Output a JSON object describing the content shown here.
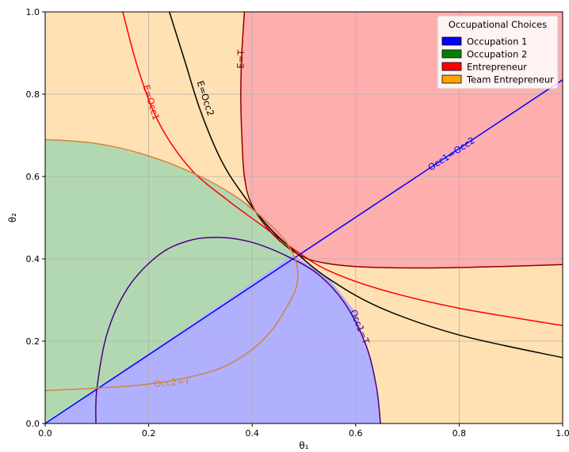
{
  "chart_data": {
    "type": "area",
    "title": "",
    "xlabel": "θ₁",
    "ylabel": "θ₂",
    "xlim": [
      0,
      1
    ],
    "ylim": [
      0,
      1
    ],
    "grid": true,
    "x_ticks": [
      "0.0",
      "0.2",
      "0.4",
      "0.6",
      "0.8",
      "1.0"
    ],
    "y_ticks": [
      "0.0",
      "0.2",
      "0.4",
      "0.6",
      "0.8",
      "1.0"
    ],
    "legend": {
      "title": "Occupational Choices",
      "placement": "top-right",
      "entries": [
        {
          "label": "Occupation 1",
          "color": "#0000ff"
        },
        {
          "label": "Occupation 2",
          "color": "#008000"
        },
        {
          "label": "Entrepreneur",
          "color": "#ff0000"
        },
        {
          "label": "Team Entrepreneur",
          "color": "#ffa500"
        }
      ]
    },
    "regions": [
      {
        "name": "Occupation 1",
        "color": "#b0b0ff",
        "polygon": [
          [
            0,
            0
          ],
          [
            0.48,
            0.41
          ],
          [
            0.55,
            0.35
          ],
          [
            0.6,
            0.27
          ],
          [
            0.63,
            0.15
          ],
          [
            0.645,
            0.05
          ],
          [
            0.648,
            0
          ]
        ]
      },
      {
        "name": "Occupation 2",
        "color": "#b2d8b2",
        "polygon": [
          [
            0,
            0.69
          ],
          [
            0.1,
            0.68
          ],
          [
            0.2,
            0.65
          ],
          [
            0.3,
            0.6
          ],
          [
            0.37,
            0.55
          ],
          [
            0.42,
            0.5
          ],
          [
            0.46,
            0.45
          ],
          [
            0.48,
            0.41
          ],
          [
            0,
            0
          ]
        ]
      },
      {
        "name": "Entrepreneur",
        "color": "#ffaeae",
        "polygon": [
          [
            0.385,
            1.0
          ],
          [
            0.38,
            0.9
          ],
          [
            0.378,
            0.8
          ],
          [
            0.38,
            0.7
          ],
          [
            0.385,
            0.6
          ],
          [
            0.4,
            0.53
          ],
          [
            0.44,
            0.46
          ],
          [
            0.49,
            0.41
          ],
          [
            0.54,
            0.39
          ],
          [
            0.62,
            0.38
          ],
          [
            0.75,
            0.378
          ],
          [
            0.9,
            0.382
          ],
          [
            1.0,
            0.386
          ],
          [
            1.0,
            1.0
          ]
        ]
      },
      {
        "name": "Team Entrepreneur",
        "color": "#ffe1b3",
        "fill": "background"
      }
    ],
    "curves": [
      {
        "label": "E=Occ1",
        "color": "#ff0000",
        "points": [
          [
            0.15,
            1.0
          ],
          [
            0.18,
            0.86
          ],
          [
            0.22,
            0.73
          ],
          [
            0.28,
            0.62
          ],
          [
            0.35,
            0.545
          ],
          [
            0.42,
            0.48
          ],
          [
            0.49,
            0.415
          ],
          [
            0.55,
            0.37
          ],
          [
            0.65,
            0.325
          ],
          [
            0.8,
            0.28
          ],
          [
            1.0,
            0.238
          ]
        ]
      },
      {
        "label": "E=Occ2",
        "color": "#000000",
        "points": [
          [
            0.24,
            1.0
          ],
          [
            0.27,
            0.88
          ],
          [
            0.3,
            0.76
          ],
          [
            0.34,
            0.64
          ],
          [
            0.38,
            0.56
          ],
          [
            0.43,
            0.48
          ],
          [
            0.48,
            0.42
          ],
          [
            0.55,
            0.35
          ],
          [
            0.65,
            0.28
          ],
          [
            0.8,
            0.215
          ],
          [
            1.0,
            0.16
          ]
        ]
      },
      {
        "label": "E=T",
        "color": "#8b0000",
        "points": [
          [
            0.385,
            1.0
          ],
          [
            0.38,
            0.9
          ],
          [
            0.378,
            0.8
          ],
          [
            0.38,
            0.7
          ],
          [
            0.385,
            0.6
          ],
          [
            0.4,
            0.53
          ],
          [
            0.44,
            0.46
          ],
          [
            0.49,
            0.41
          ],
          [
            0.54,
            0.39
          ],
          [
            0.62,
            0.38
          ],
          [
            0.75,
            0.378
          ],
          [
            0.9,
            0.382
          ],
          [
            1.0,
            0.386
          ]
        ]
      },
      {
        "label": "Occ1=Occ2",
        "color": "#0000ff",
        "points": [
          [
            0,
            0
          ],
          [
            1.0,
            0.835
          ]
        ]
      },
      {
        "label": "Occ1=T",
        "color": "#4b0082",
        "points": [
          [
            0.098,
            0
          ],
          [
            0.1,
            0.085
          ],
          [
            0.12,
            0.22
          ],
          [
            0.16,
            0.33
          ],
          [
            0.22,
            0.41
          ],
          [
            0.28,
            0.445
          ],
          [
            0.34,
            0.452
          ],
          [
            0.4,
            0.44
          ],
          [
            0.47,
            0.405
          ],
          [
            0.53,
            0.36
          ],
          [
            0.58,
            0.29
          ],
          [
            0.62,
            0.19
          ],
          [
            0.64,
            0.09
          ],
          [
            0.648,
            0
          ]
        ]
      },
      {
        "label": "Occc2=T",
        "color": "#cd853f",
        "points": [
          [
            0,
            0.69
          ],
          [
            0.1,
            0.68
          ],
          [
            0.2,
            0.65
          ],
          [
            0.3,
            0.6
          ],
          [
            0.37,
            0.55
          ],
          [
            0.42,
            0.5
          ],
          [
            0.46,
            0.45
          ],
          [
            0.48,
            0.41
          ],
          [
            0.488,
            0.37
          ],
          [
            0.485,
            0.33
          ],
          [
            0.47,
            0.29
          ],
          [
            0.44,
            0.23
          ],
          [
            0.4,
            0.18
          ],
          [
            0.34,
            0.135
          ],
          [
            0.26,
            0.108
          ],
          [
            0.18,
            0.093
          ],
          [
            0.1,
            0.086
          ],
          [
            0,
            0.08
          ]
        ]
      },
      {
        "label": "",
        "color": "#cd853f",
        "points": [
          [
            0.48,
            0.41
          ],
          [
            0.46,
            0.45
          ],
          [
            0.42,
            0.5
          ],
          [
            0.39,
            0.53
          ]
        ]
      }
    ],
    "curve_labels": [
      {
        "text": "E=Occ1",
        "x": 0.205,
        "y": 0.78,
        "angle": 73,
        "color": "#ff0000"
      },
      {
        "text": "E=Occ2",
        "x": 0.31,
        "y": 0.79,
        "angle": 72,
        "color": "#000000"
      },
      {
        "text": "E=T",
        "x": 0.378,
        "y": 0.885,
        "angle": -88,
        "color": "#8b0000"
      },
      {
        "text": "Occ1=Occ2",
        "x": 0.785,
        "y": 0.655,
        "angle": -33,
        "color": "#0000ff"
      },
      {
        "text": "Occ1=T",
        "x": 0.608,
        "y": 0.235,
        "angle": 68,
        "color": "#4b0082"
      },
      {
        "text": "Occ2=T",
        "x": 0.245,
        "y": 0.1,
        "angle": -5,
        "color": "#cd853f"
      }
    ]
  }
}
